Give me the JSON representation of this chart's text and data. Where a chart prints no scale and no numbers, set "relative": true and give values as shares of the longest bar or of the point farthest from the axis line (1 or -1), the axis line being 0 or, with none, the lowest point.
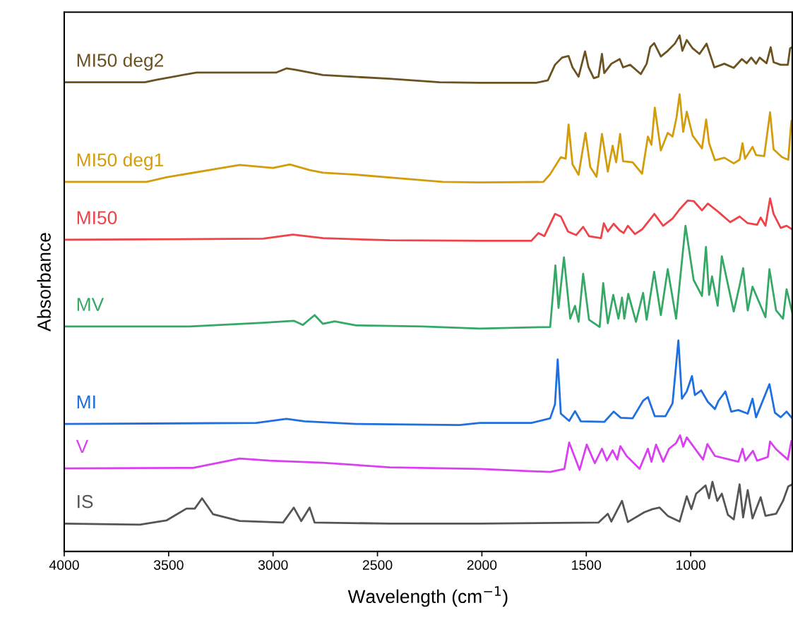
{
  "chart_data": {
    "type": "line",
    "relative": true,
    "xlabel": "Wavelength (cm$^{−1}$)",
    "ylabel": "Absorbance",
    "xlim": [
      4000,
      514
    ],
    "xticks": [
      4000,
      3500,
      3000,
      2500,
      2000,
      1500,
      1000
    ],
    "grid": false,
    "tick_labels": "x",
    "series": [
      {
        "name": "MI50 deg2",
        "color": "#6b5220",
        "x": [
          4000,
          3614,
          3558,
          3367,
          2984,
          2936,
          2889,
          2761,
          2442,
          2203,
          2010,
          1740,
          1684,
          1650,
          1616,
          1585,
          1566,
          1537,
          1506,
          1490,
          1464,
          1442,
          1425,
          1414,
          1380,
          1340,
          1324,
          1290,
          1239,
          1211,
          1194,
          1175,
          1143,
          1110,
          1076,
          1053,
          1040,
          1019,
          991,
          958,
          924,
          887,
          839,
          794,
          755,
          732,
          710,
          687,
          670,
          637,
          617,
          603,
          569,
          535,
          524,
          514
        ],
        "values": [
          0.909,
          0.909,
          0.914,
          0.928,
          0.928,
          0.936,
          0.933,
          0.923,
          0.916,
          0.909,
          0.908,
          0.908,
          0.913,
          0.943,
          0.957,
          0.96,
          0.938,
          0.92,
          0.969,
          0.939,
          0.917,
          0.92,
          0.964,
          0.927,
          0.945,
          0.954,
          0.938,
          0.943,
          0.925,
          0.945,
          0.977,
          0.985,
          0.959,
          0.97,
          0.984,
          1.0,
          0.97,
          0.991,
          0.975,
          0.964,
          0.984,
          0.938,
          0.945,
          0.937,
          0.954,
          0.946,
          0.957,
          0.945,
          0.957,
          0.946,
          0.977,
          0.948,
          0.943,
          0.943,
          0.975,
          0.977
        ]
      },
      {
        "name": "MI50 deg1",
        "color": "#d29c0c",
        "x": [
          4000,
          3606,
          3511,
          3160,
          3000,
          2920,
          2825,
          2761,
          2602,
          2362,
          2187,
          2010,
          1706,
          1673,
          1622,
          1599,
          1585,
          1566,
          1537,
          1504,
          1481,
          1451,
          1425,
          1397,
          1374,
          1357,
          1338,
          1324,
          1278,
          1233,
          1205,
          1188,
          1172,
          1143,
          1110,
          1087,
          1068,
          1053,
          1036,
          1019,
          991,
          946,
          926,
          912,
          884,
          839,
          794,
          766,
          752,
          740,
          704,
          687,
          648,
          620,
          603,
          563,
          533,
          518
        ],
        "values": [
          0.716,
          0.716,
          0.725,
          0.749,
          0.743,
          0.75,
          0.739,
          0.734,
          0.73,
          0.722,
          0.716,
          0.715,
          0.716,
          0.731,
          0.764,
          0.761,
          0.827,
          0.75,
          0.73,
          0.811,
          0.745,
          0.726,
          0.809,
          0.736,
          0.786,
          0.754,
          0.809,
          0.756,
          0.754,
          0.732,
          0.804,
          0.788,
          0.86,
          0.777,
          0.811,
          0.804,
          0.841,
          0.886,
          0.813,
          0.852,
          0.806,
          0.781,
          0.837,
          0.791,
          0.758,
          0.763,
          0.752,
          0.759,
          0.791,
          0.761,
          0.784,
          0.768,
          0.766,
          0.851,
          0.779,
          0.764,
          0.759,
          0.834
        ]
      },
      {
        "name": "MI50",
        "color": "#ee4348",
        "x": [
          4000,
          3048,
          2905,
          2761,
          2442,
          2010,
          1763,
          1729,
          1701,
          1650,
          1622,
          1588,
          1549,
          1515,
          1487,
          1430,
          1416,
          1397,
          1369,
          1340,
          1321,
          1301,
          1267,
          1233,
          1174,
          1132,
          1087,
          1053,
          1014,
          986,
          946,
          918,
          862,
          811,
          766,
          727,
          682,
          665,
          642,
          620,
          603,
          569,
          541,
          514
        ],
        "values": [
          0.604,
          0.606,
          0.614,
          0.607,
          0.603,
          0.602,
          0.602,
          0.617,
          0.611,
          0.654,
          0.649,
          0.62,
          0.613,
          0.629,
          0.611,
          0.607,
          0.636,
          0.62,
          0.635,
          0.622,
          0.617,
          0.631,
          0.615,
          0.624,
          0.654,
          0.631,
          0.645,
          0.663,
          0.68,
          0.679,
          0.661,
          0.674,
          0.656,
          0.638,
          0.649,
          0.636,
          0.633,
          0.647,
          0.631,
          0.684,
          0.654,
          0.627,
          0.631,
          0.624
        ]
      },
      {
        "name": "MV",
        "color": "#35a866",
        "x": [
          4000,
          3399,
          3048,
          2901,
          2857,
          2801,
          2761,
          2705,
          2602,
          2283,
          2010,
          1673,
          1648,
          1633,
          1607,
          1577,
          1554,
          1537,
          1515,
          1487,
          1436,
          1419,
          1397,
          1371,
          1346,
          1329,
          1318,
          1299,
          1262,
          1228,
          1211,
          1175,
          1143,
          1110,
          1070,
          1025,
          986,
          946,
          927,
          912,
          898,
          871,
          851,
          794,
          766,
          749,
          727,
          704,
          642,
          623,
          591,
          558,
          541,
          514
        ],
        "values": [
          0.436,
          0.436,
          0.443,
          0.447,
          0.439,
          0.458,
          0.441,
          0.446,
          0.438,
          0.436,
          0.432,
          0.435,
          0.554,
          0.472,
          0.57,
          0.451,
          0.476,
          0.445,
          0.538,
          0.449,
          0.435,
          0.52,
          0.442,
          0.497,
          0.451,
          0.492,
          0.451,
          0.499,
          0.445,
          0.501,
          0.449,
          0.542,
          0.458,
          0.547,
          0.451,
          0.631,
          0.526,
          0.495,
          0.59,
          0.497,
          0.533,
          0.476,
          0.572,
          0.465,
          0.515,
          0.549,
          0.467,
          0.513,
          0.454,
          0.547,
          0.467,
          0.451,
          0.508,
          0.463
        ]
      },
      {
        "name": "MI",
        "color": "#1f6fe0",
        "x": [
          4000,
          3080,
          2936,
          2849,
          2602,
          2107,
          2010,
          1763,
          1673,
          1650,
          1637,
          1622,
          1582,
          1554,
          1526,
          1414,
          1369,
          1335,
          1278,
          1228,
          1205,
          1172,
          1121,
          1087,
          1059,
          1042,
          1019,
          994,
          980,
          950,
          918,
          884,
          867,
          834,
          806,
          772,
          727,
          704,
          687,
          623,
          597,
          569,
          541,
          514
        ],
        "values": [
          0.247,
          0.249,
          0.257,
          0.252,
          0.247,
          0.245,
          0.249,
          0.249,
          0.258,
          0.285,
          0.372,
          0.267,
          0.253,
          0.272,
          0.252,
          0.251,
          0.271,
          0.259,
          0.258,
          0.292,
          0.299,
          0.262,
          0.262,
          0.287,
          0.409,
          0.296,
          0.31,
          0.34,
          0.303,
          0.312,
          0.29,
          0.276,
          0.292,
          0.31,
          0.271,
          0.274,
          0.267,
          0.296,
          0.26,
          0.324,
          0.269,
          0.26,
          0.271,
          0.258
        ]
      },
      {
        "name": "V",
        "color": "#d93ff0",
        "x": [
          4000,
          3383,
          3160,
          3016,
          2761,
          2442,
          2010,
          1673,
          1605,
          1582,
          1532,
          1498,
          1459,
          1425,
          1402,
          1374,
          1352,
          1337,
          1307,
          1245,
          1205,
          1188,
          1166,
          1132,
          1104,
          1070,
          1051,
          1036,
          1019,
          941,
          920,
          884,
          772,
          752,
          738,
          702,
          682,
          631,
          620,
          591,
          535,
          518
        ],
        "values": [
          0.161,
          0.162,
          0.18,
          0.176,
          0.172,
          0.163,
          0.16,
          0.154,
          0.16,
          0.211,
          0.158,
          0.207,
          0.171,
          0.199,
          0.176,
          0.196,
          0.178,
          0.204,
          0.185,
          0.16,
          0.199,
          0.174,
          0.207,
          0.174,
          0.199,
          0.21,
          0.225,
          0.203,
          0.221,
          0.178,
          0.208,
          0.185,
          0.174,
          0.199,
          0.176,
          0.195,
          0.176,
          0.183,
          0.213,
          0.198,
          0.178,
          0.214
        ]
      },
      {
        "name": "IS",
        "color": "#555555",
        "x": [
          4000,
          3638,
          3511,
          3415,
          3375,
          3340,
          3287,
          3160,
          2952,
          2901,
          2865,
          2825,
          2801,
          2442,
          2010,
          1442,
          1397,
          1380,
          1329,
          1301,
          1222,
          1183,
          1149,
          1110,
          1053,
          1019,
          997,
          974,
          929,
          912,
          896,
          873,
          851,
          822,
          794,
          766,
          749,
          727,
          704,
          665,
          642,
          591,
          558,
          533,
          514
        ],
        "values": [
          0.054,
          0.052,
          0.06,
          0.083,
          0.083,
          0.103,
          0.072,
          0.059,
          0.056,
          0.085,
          0.059,
          0.085,
          0.056,
          0.054,
          0.054,
          0.056,
          0.073,
          0.058,
          0.098,
          0.057,
          0.076,
          0.082,
          0.085,
          0.069,
          0.058,
          0.107,
          0.082,
          0.112,
          0.128,
          0.103,
          0.135,
          0.098,
          0.112,
          0.071,
          0.062,
          0.13,
          0.066,
          0.119,
          0.064,
          0.105,
          0.069,
          0.073,
          0.098,
          0.126,
          0.13
        ]
      }
    ]
  }
}
